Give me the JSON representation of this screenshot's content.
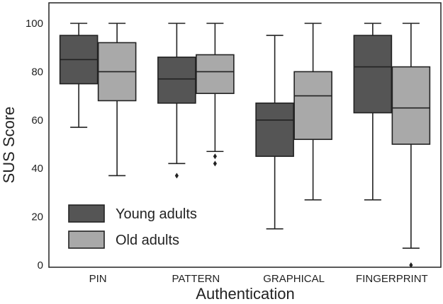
{
  "chart_data": {
    "type": "box",
    "title": "",
    "xlabel": "Authentication",
    "ylabel": "SUS Score",
    "ylim": [
      0,
      100
    ],
    "yticks": [
      0,
      20,
      40,
      60,
      80,
      100
    ],
    "categories": [
      "PIN",
      "PATTERN",
      "GRAPHICAL",
      "FINGERPRINT"
    ],
    "legend_position": "lower-left",
    "grid": false,
    "series": [
      {
        "name": "Young adults",
        "color": "#555555",
        "boxes": [
          {
            "whisker_low": 57,
            "q1": 75,
            "median": 85,
            "q3": 95,
            "whisker_high": 100,
            "outliers": []
          },
          {
            "whisker_low": 42,
            "q1": 67,
            "median": 77,
            "q3": 86,
            "whisker_high": 100,
            "outliers": [
              37
            ]
          },
          {
            "whisker_low": 15,
            "q1": 45,
            "median": 60,
            "q3": 67,
            "whisker_high": 95,
            "outliers": []
          },
          {
            "whisker_low": 27,
            "q1": 63,
            "median": 82,
            "q3": 95,
            "whisker_high": 100,
            "outliers": []
          }
        ]
      },
      {
        "name": "Old adults",
        "color": "#a9a9a9",
        "boxes": [
          {
            "whisker_low": 37,
            "q1": 68,
            "median": 80,
            "q3": 92,
            "whisker_high": 100,
            "outliers": []
          },
          {
            "whisker_low": 47,
            "q1": 71,
            "median": 80,
            "q3": 87,
            "whisker_high": 100,
            "outliers": [
              45,
              42
            ]
          },
          {
            "whisker_low": 27,
            "q1": 52,
            "median": 70,
            "q3": 80,
            "whisker_high": 100,
            "outliers": []
          },
          {
            "whisker_low": 7,
            "q1": 50,
            "median": 65,
            "q3": 82,
            "whisker_high": 100,
            "outliers": [
              0
            ]
          }
        ]
      }
    ]
  }
}
